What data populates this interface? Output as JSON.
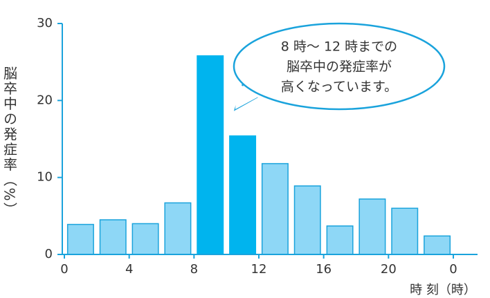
{
  "chart_data": {
    "type": "histogram",
    "bins": [
      0,
      2,
      4,
      6,
      8,
      10,
      12,
      14,
      16,
      18,
      20,
      22,
      24
    ],
    "values": [
      3.9,
      4.5,
      4.0,
      6.7,
      25.8,
      15.4,
      11.8,
      8.9,
      3.7,
      7.2,
      6.0,
      2.4
    ],
    "colors": [
      "#8ed7f6",
      "#8ed7f6",
      "#8ed7f6",
      "#8ed7f6",
      "#00b4ee",
      "#00b4ee",
      "#8ed7f6",
      "#8ed7f6",
      "#8ed7f6",
      "#8ed7f6",
      "#8ed7f6",
      "#8ed7f6"
    ],
    "edge_color": "#1aa3dc",
    "xlim": [
      0,
      24
    ],
    "ylim": [
      0,
      30
    ],
    "xticks": [
      0,
      4,
      8,
      12,
      16,
      20,
      {
        "value": 24,
        "label": "0"
      }
    ],
    "yticks": [
      0,
      10,
      20,
      30
    ],
    "x_label": "時 刻（時）",
    "y_label": "脳卒中の発症率（%）",
    "annotation": [
      "8 時～ 12 時までの",
      "脳卒中の発症率が",
      "高くなっています。"
    ]
  }
}
